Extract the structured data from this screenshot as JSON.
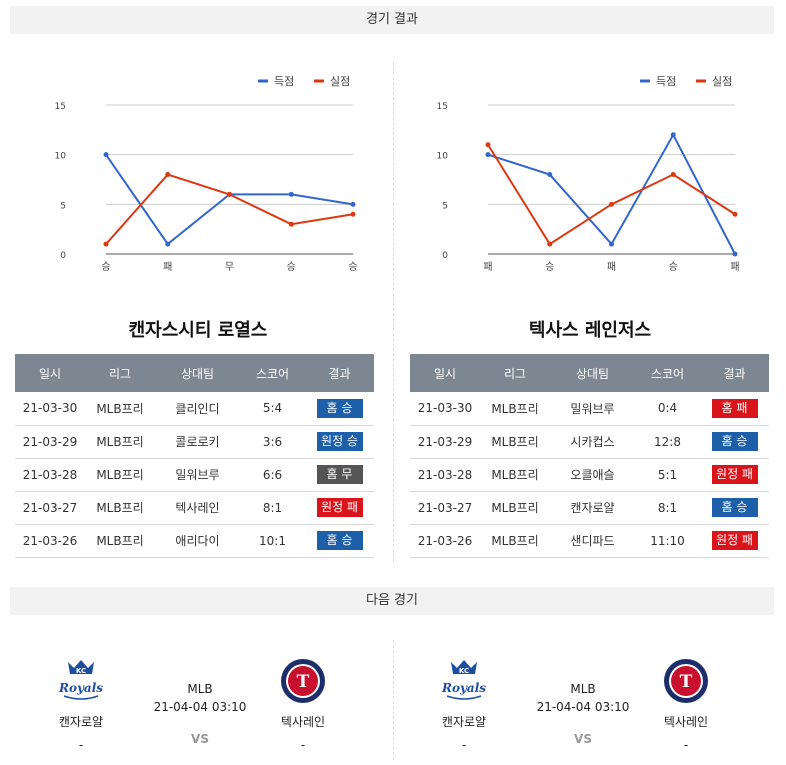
{
  "results_header": "경기 결과",
  "next_header": "다음 경기",
  "legend": {
    "scored": "득점",
    "allowed": "실점",
    "scored_color": "#3366cc",
    "allowed_color": "#dc3912"
  },
  "chart_data": [
    {
      "type": "line",
      "categories": [
        "승",
        "패",
        "무",
        "승",
        "승"
      ],
      "ylim": [
        0,
        15
      ],
      "yticks": [
        "15",
        "10",
        "5",
        "0"
      ],
      "series": [
        {
          "name": "득점",
          "values": [
            10,
            1,
            6,
            6,
            5
          ]
        },
        {
          "name": "실점",
          "values": [
            1,
            8,
            6,
            3,
            4
          ]
        }
      ]
    },
    {
      "type": "line",
      "categories": [
        "패",
        "승",
        "패",
        "승",
        "패"
      ],
      "ylim": [
        0,
        15
      ],
      "yticks": [
        "15",
        "10",
        "5",
        "0"
      ],
      "series": [
        {
          "name": "득점",
          "values": [
            10,
            8,
            1,
            12,
            0
          ]
        },
        {
          "name": "실점",
          "values": [
            11,
            1,
            5,
            8,
            4
          ]
        }
      ]
    }
  ],
  "teams": [
    {
      "name": "캔자스시티 로열스",
      "headers": [
        "일시",
        "리그",
        "상대팀",
        "스코어",
        "결과"
      ],
      "rows": [
        {
          "date": "21-03-30",
          "league": "MLB프리",
          "opponent": "클리인디",
          "score": "5:4",
          "result": "홈 승",
          "type": "win"
        },
        {
          "date": "21-03-29",
          "league": "MLB프리",
          "opponent": "콜로로키",
          "score": "3:6",
          "result": "원정 승",
          "type": "win"
        },
        {
          "date": "21-03-28",
          "league": "MLB프리",
          "opponent": "밀워브루",
          "score": "6:6",
          "result": "홈 무",
          "type": "draw"
        },
        {
          "date": "21-03-27",
          "league": "MLB프리",
          "opponent": "텍사레인",
          "score": "8:1",
          "result": "원정 패",
          "type": "lose"
        },
        {
          "date": "21-03-26",
          "league": "MLB프리",
          "opponent": "애리다이",
          "score": "10:1",
          "result": "홈 승",
          "type": "win"
        }
      ]
    },
    {
      "name": "텍사스 레인저스",
      "headers": [
        "일시",
        "리그",
        "상대팀",
        "스코어",
        "결과"
      ],
      "rows": [
        {
          "date": "21-03-30",
          "league": "MLB프리",
          "opponent": "밀워브루",
          "score": "0:4",
          "result": "홈 패",
          "type": "lose"
        },
        {
          "date": "21-03-29",
          "league": "MLB프리",
          "opponent": "시카컵스",
          "score": "12:8",
          "result": "홈 승",
          "type": "win"
        },
        {
          "date": "21-03-28",
          "league": "MLB프리",
          "opponent": "오클애슬",
          "score": "5:1",
          "result": "원정 패",
          "type": "lose"
        },
        {
          "date": "21-03-27",
          "league": "MLB프리",
          "opponent": "캔자로얄",
          "score": "8:1",
          "result": "홈 승",
          "type": "win"
        },
        {
          "date": "21-03-26",
          "league": "MLB프리",
          "opponent": "샌디파드",
          "score": "11:10",
          "result": "원정 패",
          "type": "lose"
        }
      ]
    }
  ],
  "next_games": [
    {
      "home": "캔자로얄",
      "home_score": "-",
      "away": "텍사레인",
      "away_score": "-",
      "league": "MLB",
      "datetime": "21-04-04 03:10",
      "vs": "VS"
    },
    {
      "home": "캔자로얄",
      "home_score": "-",
      "away": "텍사레인",
      "away_score": "-",
      "league": "MLB",
      "datetime": "21-04-04 03:10",
      "vs": "VS"
    }
  ]
}
